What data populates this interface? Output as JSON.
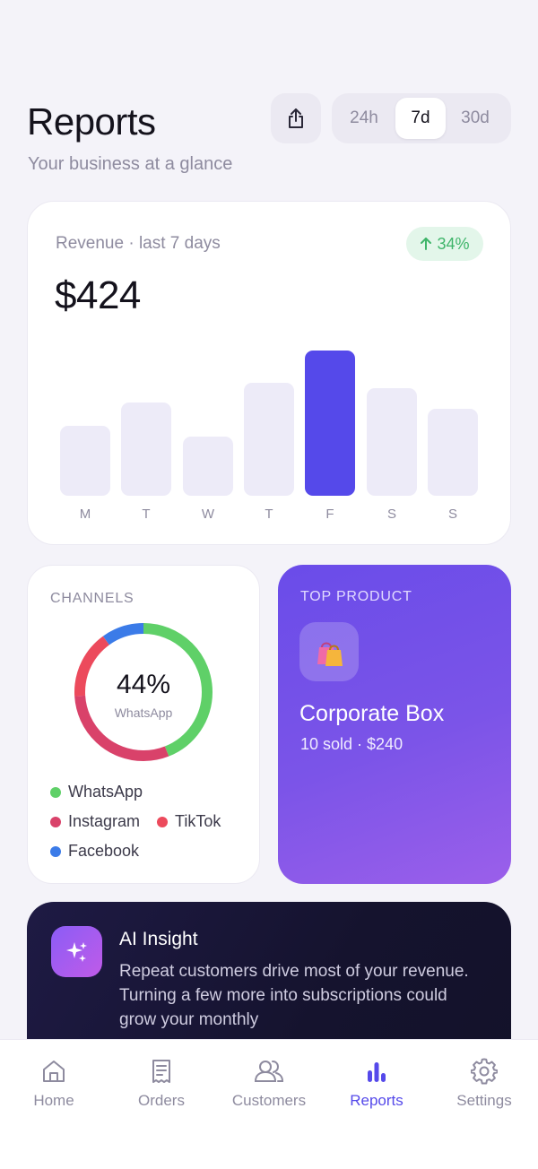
{
  "header": {
    "title": "Reports",
    "subtitle": "Your business at a glance",
    "share_icon": "share-icon",
    "ranges": [
      "24h",
      "7d",
      "30d"
    ],
    "selected_range": "7d"
  },
  "revenue": {
    "label": "Revenue · last 7 days",
    "change": "34%",
    "change_icon": "arrow-up-icon",
    "value": "$424"
  },
  "chart_data": {
    "type": "bar",
    "categories": [
      "M",
      "T",
      "W",
      "T",
      "F",
      "S",
      "S"
    ],
    "values": [
      48,
      64,
      41,
      78,
      100,
      74,
      60
    ],
    "highlight_index": 4,
    "title": "",
    "xlabel": "",
    "ylabel": "",
    "ylim": [
      0,
      100
    ],
    "grid": false,
    "colors": {
      "bar": "#edebf8",
      "highlight": "#5549ea"
    }
  },
  "channels": {
    "title": "CHANNELS",
    "center_value": "44%",
    "center_label": "WhatsApp",
    "segments": [
      {
        "name": "WhatsApp",
        "share": 44,
        "color": "#5fd068"
      },
      {
        "name": "Instagram",
        "share": 30,
        "color": "#d9426a"
      },
      {
        "name": "TikTok",
        "share": 16,
        "color": "#ec4a5c"
      },
      {
        "name": "Facebook",
        "share": 10,
        "color": "#3b7be8"
      }
    ]
  },
  "top_product": {
    "title": "TOP PRODUCT",
    "icon": "shopping-bags-icon",
    "name": "Corporate Box",
    "detail": "10 sold · $240"
  },
  "ai_insight": {
    "icon": "sparkles-icon",
    "title": "AI Insight",
    "text": "Repeat customers drive most of your revenue. Turning a few more into subscriptions could grow your monthly"
  },
  "nav": {
    "items": [
      {
        "label": "Home",
        "icon": "home-icon"
      },
      {
        "label": "Orders",
        "icon": "receipt-icon"
      },
      {
        "label": "Customers",
        "icon": "users-icon"
      },
      {
        "label": "Reports",
        "icon": "bar-chart-icon"
      },
      {
        "label": "Settings",
        "icon": "gear-icon"
      }
    ],
    "active": "Reports",
    "accent": "#5549ea"
  }
}
